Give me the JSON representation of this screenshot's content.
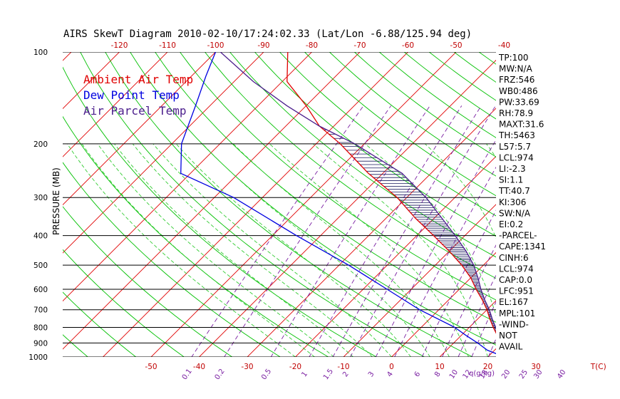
{
  "chart_data": {
    "type": "line",
    "title": "AIRS SkewT Diagram 2010-02-10/17:24:02.33 (Lat/Lon -6.88/125.94 deg)",
    "ylabel": "PRESSURE (MB)",
    "ylim": [
      1000,
      100
    ],
    "pressure_ticks": [
      "100",
      "200",
      "300",
      "400",
      "500",
      "600",
      "700",
      "800",
      "900",
      "1000"
    ],
    "top_temp_ticks": [
      "-120",
      "-110",
      "-100",
      "-90",
      "-80",
      "-70",
      "-60",
      "-50",
      "-40"
    ],
    "bottom_temp_ticks": [
      "-50",
      "-40",
      "-30",
      "-20",
      "-10",
      "0",
      "10",
      "20",
      "30"
    ],
    "bottom_temp_unit": "T(C)",
    "mixing_ratio_ticks": [
      "0.1",
      "0.2",
      "0.5",
      "1",
      "1.5",
      "2",
      "3",
      "4",
      "6",
      "8",
      "10",
      "12",
      "15",
      "20",
      "25",
      "30",
      "40"
    ],
    "mixing_ratio_unit": "q(g/kg)",
    "legend": [
      "Ambient Air Temp",
      "Dew Point Temp",
      "Air Parcel Temp"
    ],
    "colors": {
      "ambient": "#e00000",
      "dewpoint": "#0000e0",
      "parcel": "#4b1e8c",
      "isotherm": "#e00000",
      "dry_adiabat": "#00c000",
      "moist_adiabat": "#33cc33",
      "mixing_ratio": "#7a1fa2",
      "isobar": "#000000"
    },
    "series": [
      {
        "name": "Ambient Air Temp",
        "points": [
          [
            1000,
            27.0
          ],
          [
            975,
            25.0
          ],
          [
            950,
            22.5
          ],
          [
            925,
            21.0
          ],
          [
            900,
            20.0
          ],
          [
            850,
            17.5
          ],
          [
            800,
            15.0
          ],
          [
            750,
            12.5
          ],
          [
            700,
            10.0
          ],
          [
            650,
            7.0
          ],
          [
            600,
            3.5
          ],
          [
            550,
            0.0
          ],
          [
            500,
            -4.5
          ],
          [
            450,
            -10.0
          ],
          [
            400,
            -16.5
          ],
          [
            350,
            -24.0
          ],
          [
            300,
            -32.0
          ],
          [
            250,
            -43.0
          ],
          [
            200,
            -55.0
          ],
          [
            175,
            -63.0
          ],
          [
            150,
            -70.0
          ],
          [
            125,
            -79.0
          ],
          [
            100,
            -85.0
          ]
        ]
      },
      {
        "name": "Dew Point Temp",
        "points": [
          [
            1000,
            23.5
          ],
          [
            950,
            18.5
          ],
          [
            900,
            15.0
          ],
          [
            850,
            11.0
          ],
          [
            800,
            7.0
          ],
          [
            700,
            -4.0
          ],
          [
            600,
            -15.0
          ],
          [
            500,
            -28.0
          ],
          [
            400,
            -45.0
          ],
          [
            300,
            -66.0
          ],
          [
            250,
            -82.0
          ],
          [
            200,
            -88.0
          ],
          [
            150,
            -93.0
          ],
          [
            120,
            -97.0
          ],
          [
            100,
            -100.0
          ]
        ]
      },
      {
        "name": "Air Parcel Temp",
        "points": [
          [
            1000,
            27.0
          ],
          [
            975,
            24.5
          ],
          [
            950,
            22.8
          ],
          [
            925,
            21.5
          ],
          [
            900,
            20.5
          ],
          [
            850,
            18.0
          ],
          [
            800,
            15.5
          ],
          [
            750,
            13.0
          ],
          [
            700,
            10.5
          ],
          [
            650,
            7.5
          ],
          [
            600,
            4.5
          ],
          [
            550,
            1.5
          ],
          [
            500,
            -2.0
          ],
          [
            450,
            -6.5
          ],
          [
            400,
            -12.0
          ],
          [
            350,
            -18.5
          ],
          [
            300,
            -26.0
          ],
          [
            250,
            -36.0
          ],
          [
            200,
            -52.0
          ],
          [
            175,
            -63.0
          ],
          [
            150,
            -74.0
          ],
          [
            125,
            -86.0
          ],
          [
            100,
            -99.0
          ]
        ]
      }
    ],
    "indices": [
      "TP:100",
      "MW:N/A",
      "FRZ:546",
      "WB0:486",
      "PW:33.69",
      "RH:78.9",
      "MAXT:31.6",
      "TH:5463",
      "L57:5.7",
      "LCL:974",
      "LI:-2.3",
      "SI:1.1",
      "TT:40.7",
      "KI:306",
      "SW:N/A",
      "EI:0.2",
      "-PARCEL-",
      "CAPE:1341",
      "CINH:6",
      "LCL:974",
      "CAP:0.0",
      "LFC:951",
      "EL:167",
      "MPL:101",
      "-WIND-",
      "NOT",
      "AVAIL"
    ]
  }
}
